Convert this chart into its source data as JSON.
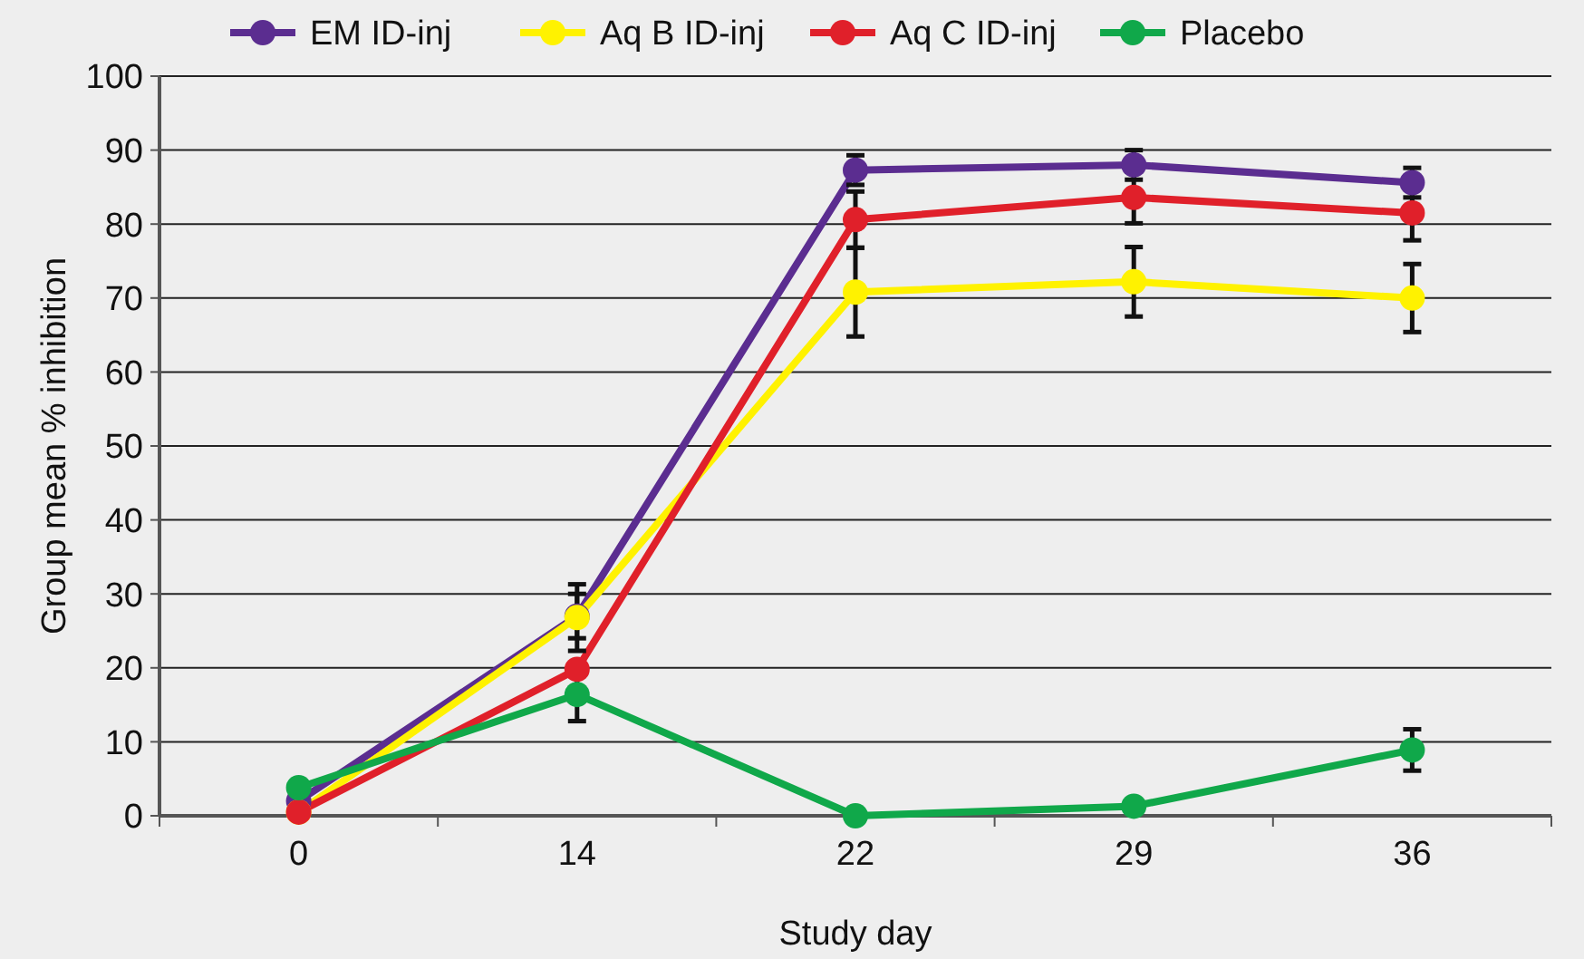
{
  "chart_data": {
    "type": "line",
    "xlabel": "Study day",
    "ylabel": "Group mean % inhibition",
    "categories": [
      "0",
      "14",
      "22",
      "29",
      "36"
    ],
    "ylim": [
      0,
      100
    ],
    "yticks": [
      0,
      10,
      20,
      30,
      40,
      50,
      60,
      70,
      80,
      90,
      100
    ],
    "grid": "y",
    "legend": "top",
    "marker": "circle",
    "line_style": "solid",
    "series": [
      {
        "name": "EM ID-inj",
        "color": "#5b2d90",
        "values": [
          2,
          27,
          87.3,
          88,
          85.6
        ],
        "errors": [
          null,
          3,
          2,
          2,
          2
        ]
      },
      {
        "name": "Aq B ID-inj",
        "color": "#fff200",
        "values": [
          0.5,
          26.8,
          70.8,
          72.2,
          70
        ],
        "errors": [
          null,
          4.5,
          6,
          4.7,
          4.6
        ]
      },
      {
        "name": "Aq C ID-inj",
        "color": "#e0202a",
        "values": [
          0.5,
          19.8,
          80.6,
          83.6,
          81.5
        ],
        "errors": [
          null,
          null,
          3.8,
          3.5,
          3.7
        ]
      },
      {
        "name": "Placebo",
        "color": "#10a84a",
        "values": [
          3.8,
          16.4,
          0,
          1.3,
          8.9
        ],
        "errors": [
          null,
          3.6,
          null,
          null,
          2.8
        ]
      }
    ]
  }
}
